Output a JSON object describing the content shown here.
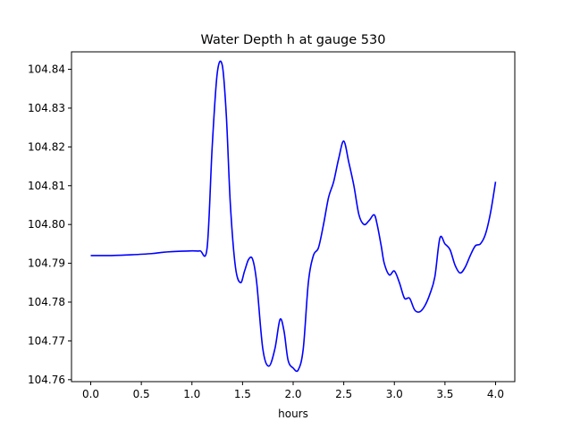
{
  "chart_data": {
    "type": "line",
    "title": "Water Depth h at gauge 530",
    "xlabel": "hours",
    "ylabel": "",
    "xlim": [
      -0.19,
      4.19
    ],
    "ylim": [
      104.7595,
      104.8445
    ],
    "x_ticks": [
      0.0,
      0.5,
      1.0,
      1.5,
      2.0,
      2.5,
      3.0,
      3.5,
      4.0
    ],
    "x_tick_labels": [
      "0.0",
      "0.5",
      "1.0",
      "1.5",
      "2.0",
      "2.5",
      "3.0",
      "3.5",
      "4.0"
    ],
    "y_ticks": [
      104.76,
      104.77,
      104.78,
      104.79,
      104.8,
      104.81,
      104.82,
      104.83,
      104.84
    ],
    "y_tick_labels": [
      "104.76",
      "104.77",
      "104.78",
      "104.79",
      "104.80",
      "104.81",
      "104.82",
      "104.83",
      "104.84"
    ],
    "grid": false,
    "series": [
      {
        "name": "",
        "color": "#0000ff",
        "x": [
          0.0,
          0.2,
          0.4,
          0.6,
          0.7,
          0.8,
          1.0,
          1.08,
          1.15,
          1.2,
          1.25,
          1.3,
          1.34,
          1.38,
          1.43,
          1.48,
          1.52,
          1.56,
          1.6,
          1.64,
          1.7,
          1.76,
          1.82,
          1.87,
          1.91,
          1.95,
          2.0,
          2.05,
          2.1,
          2.15,
          2.2,
          2.25,
          2.3,
          2.35,
          2.4,
          2.45,
          2.5,
          2.55,
          2.6,
          2.65,
          2.7,
          2.75,
          2.8,
          2.83,
          2.87,
          2.9,
          2.95,
          3.0,
          3.05,
          3.1,
          3.15,
          3.2,
          3.25,
          3.3,
          3.35,
          3.4,
          3.45,
          3.5,
          3.55,
          3.6,
          3.65,
          3.7,
          3.75,
          3.8,
          3.85,
          3.9,
          3.95,
          4.0
        ],
        "y": [
          104.792,
          104.792,
          104.7922,
          104.7925,
          104.7928,
          104.793,
          104.7932,
          104.7932,
          104.794,
          104.82,
          104.839,
          104.841,
          104.828,
          104.805,
          104.789,
          104.785,
          104.788,
          104.791,
          104.791,
          104.785,
          104.768,
          104.7635,
          104.768,
          104.7755,
          104.7725,
          104.765,
          104.763,
          104.7625,
          104.768,
          104.785,
          104.792,
          104.794,
          104.8,
          104.807,
          104.811,
          104.817,
          104.8215,
          104.816,
          104.81,
          104.8025,
          104.8,
          104.801,
          104.8025,
          104.8,
          104.7945,
          104.79,
          104.787,
          104.788,
          104.785,
          104.781,
          104.781,
          104.778,
          104.7775,
          104.779,
          104.782,
          104.7865,
          104.7965,
          104.795,
          104.7935,
          104.7895,
          104.7875,
          104.789,
          104.792,
          104.7945,
          104.795,
          104.7975,
          104.803,
          104.811
        ]
      }
    ]
  }
}
